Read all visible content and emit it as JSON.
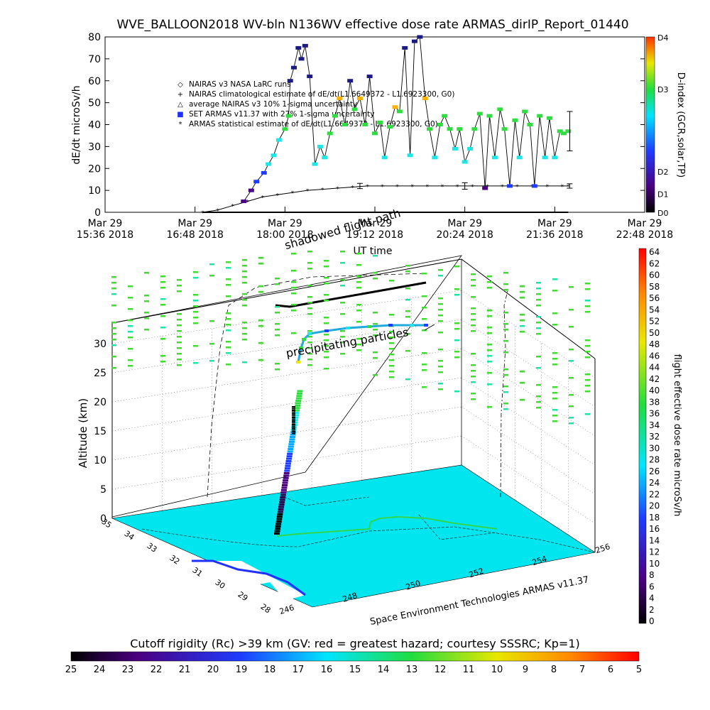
{
  "chart_data": [
    {
      "type": "line",
      "title": "WVE_BALLOON2018 WV-bln N136WV effective dose rate ARMAS_dirIP_Report_01440",
      "ylabel": "dE/dt microSv/h",
      "xlabel": "UT time",
      "ylim": [
        0,
        80
      ],
      "y_ticks": [
        "0",
        "10",
        "20",
        "30",
        "40",
        "50",
        "60",
        "70",
        "80"
      ],
      "x_ticks": [
        {
          "l1": "Mar 29",
          "l2": "15:36 2018"
        },
        {
          "l1": "Mar 29",
          "l2": "16:48 2018"
        },
        {
          "l1": "Mar 29",
          "l2": "18:00 2018"
        },
        {
          "l1": "Mar 29",
          "l2": "19:12 2018"
        },
        {
          "l1": "Mar 29",
          "l2": "20:24 2018"
        },
        {
          "l1": "Mar 29",
          "l2": "21:36 2018"
        },
        {
          "l1": "Mar 29",
          "l2": "22:48 2018"
        }
      ],
      "right_axis_label": "D-index (GCR,solar,TP)",
      "right_axis_ticks": [
        "D0",
        "D1",
        "D2",
        "D3",
        "D4"
      ],
      "legend": [
        {
          "symbol": "diamond",
          "text": "NAIRAS v3 NASA LaRC runs"
        },
        {
          "symbol": "plus",
          "text": "NAIRAS climatological estimate of dE/dt(L1.6649372 - L1.6923300, G0)"
        },
        {
          "symbol": "triangle",
          "text": "average NAIRAS v3 10% 1-sigma uncertainty"
        },
        {
          "symbol": "square",
          "text": "SET ARMAS v11.37 with 27% 1-sigma uncertainty"
        },
        {
          "symbol": "asterisk",
          "text": "ARMAS statistical estimate of dE/dt(L1.6649372 - L1.6923300, G0)"
        }
      ],
      "series": [
        {
          "name": "SET ARMAS v11.37 with 27% 1-sigma uncertainty",
          "x_hours": [
            17.45,
            17.55,
            17.62,
            17.72,
            17.78,
            17.85,
            17.92,
            18.0,
            18.05,
            18.07,
            18.12,
            18.18,
            18.22,
            18.27,
            18.33,
            18.4,
            18.47,
            18.53,
            18.6,
            18.67,
            18.73,
            18.8,
            18.87,
            18.93,
            19.0,
            19.07,
            19.13,
            19.2,
            19.27,
            19.33,
            19.4,
            19.47,
            19.53,
            19.6,
            19.67,
            19.73,
            19.8,
            19.87,
            19.93,
            20.0,
            20.07,
            20.13,
            20.2,
            20.27,
            20.33,
            20.4,
            20.47,
            20.53,
            20.6,
            20.67,
            20.73,
            20.8,
            20.87,
            20.93,
            21.0,
            21.07,
            21.13,
            21.2,
            21.27,
            21.33,
            21.4,
            21.47,
            21.53,
            21.6,
            21.67,
            21.72,
            21.78
          ],
          "y": [
            5,
            10,
            14,
            18,
            22,
            26,
            33,
            38,
            44,
            60,
            66,
            75,
            70,
            76,
            62,
            22,
            30,
            25,
            36,
            44,
            52,
            40,
            60,
            47,
            52,
            40,
            62,
            36,
            41,
            25,
            39,
            48,
            46,
            75,
            26,
            78,
            82,
            52,
            38,
            25,
            40,
            44,
            38,
            29,
            38,
            23,
            29,
            38,
            45,
            11,
            44,
            25,
            47,
            38,
            12,
            42,
            25,
            46,
            40,
            12,
            44,
            25,
            43,
            25,
            37,
            36,
            37
          ],
          "dindex_colored": true
        },
        {
          "name": "ARMAS statistical estimate of dE/dt(L1.6649372 - L1.6923300, G0)",
          "x_hours": [
            16.9,
            17.1,
            17.3,
            17.5,
            17.7,
            17.9,
            18.1,
            18.3,
            18.5,
            18.7,
            18.9,
            19.1,
            19.3,
            19.5,
            19.7,
            19.9,
            20.1,
            20.3,
            20.5,
            20.7,
            20.9,
            21.1,
            21.3,
            21.5,
            21.7,
            21.78
          ],
          "y": [
            0,
            1,
            3,
            5,
            7,
            8,
            9,
            10,
            10.5,
            11,
            11.5,
            12,
            12,
            12,
            12,
            12,
            12,
            12,
            12,
            12,
            12,
            12,
            12,
            12,
            12,
            12
          ]
        }
      ]
    },
    {
      "type": "scatter",
      "subtype": "3d-trajectory",
      "zlabel": "Altitude (km)",
      "z_ticks": [
        "0",
        "5",
        "10",
        "15",
        "20",
        "25",
        "30"
      ],
      "lat_ticks": [
        "35",
        "34",
        "33",
        "32",
        "31",
        "30",
        "29",
        "28"
      ],
      "lon_ticks": [
        "246",
        "248",
        "250",
        "252",
        "254",
        "256"
      ],
      "annotations": [
        "shadowed flight path",
        "precipitating particles"
      ],
      "footer": "Space Environment Technologies ARMAS v11.37",
      "dose_colorbar_label": "flight effective dose rate microSv/h",
      "dose_colorbar_ticks": [
        "0",
        "2",
        "4",
        "6",
        "8",
        "10",
        "12",
        "14",
        "16",
        "18",
        "20",
        "22",
        "24",
        "26",
        "28",
        "30",
        "32",
        "34",
        "36",
        "38",
        "40",
        "42",
        "44",
        "46",
        "48",
        "50",
        "52",
        "54",
        "56",
        "58",
        "60",
        "62",
        "64"
      ],
      "altitude_km": [
        0,
        2,
        4,
        6,
        8,
        10,
        12,
        14,
        16,
        18,
        20,
        22,
        24,
        26,
        28,
        29,
        30,
        30.5,
        31,
        31.3,
        31.5,
        31.6,
        31.7
      ],
      "dose_microSv_h": [
        2,
        3,
        4,
        5,
        6,
        8,
        10,
        12,
        16,
        20,
        24,
        28,
        34,
        40,
        44,
        38,
        26,
        24,
        22,
        20,
        18,
        16,
        15
      ]
    },
    {
      "type": "heatmap",
      "subtype": "colorbar",
      "caption": "Cutoff rigidity (Rc) >39 km (GV: red = greatest hazard; courtesy SSSRC; Kp=1)",
      "ticks": [
        "25",
        "24",
        "23",
        "22",
        "21",
        "20",
        "19",
        "18",
        "17",
        "16",
        "15",
        "14",
        "13",
        "12",
        "11",
        "10",
        "9",
        "8",
        "7",
        "6",
        "5"
      ]
    }
  ]
}
